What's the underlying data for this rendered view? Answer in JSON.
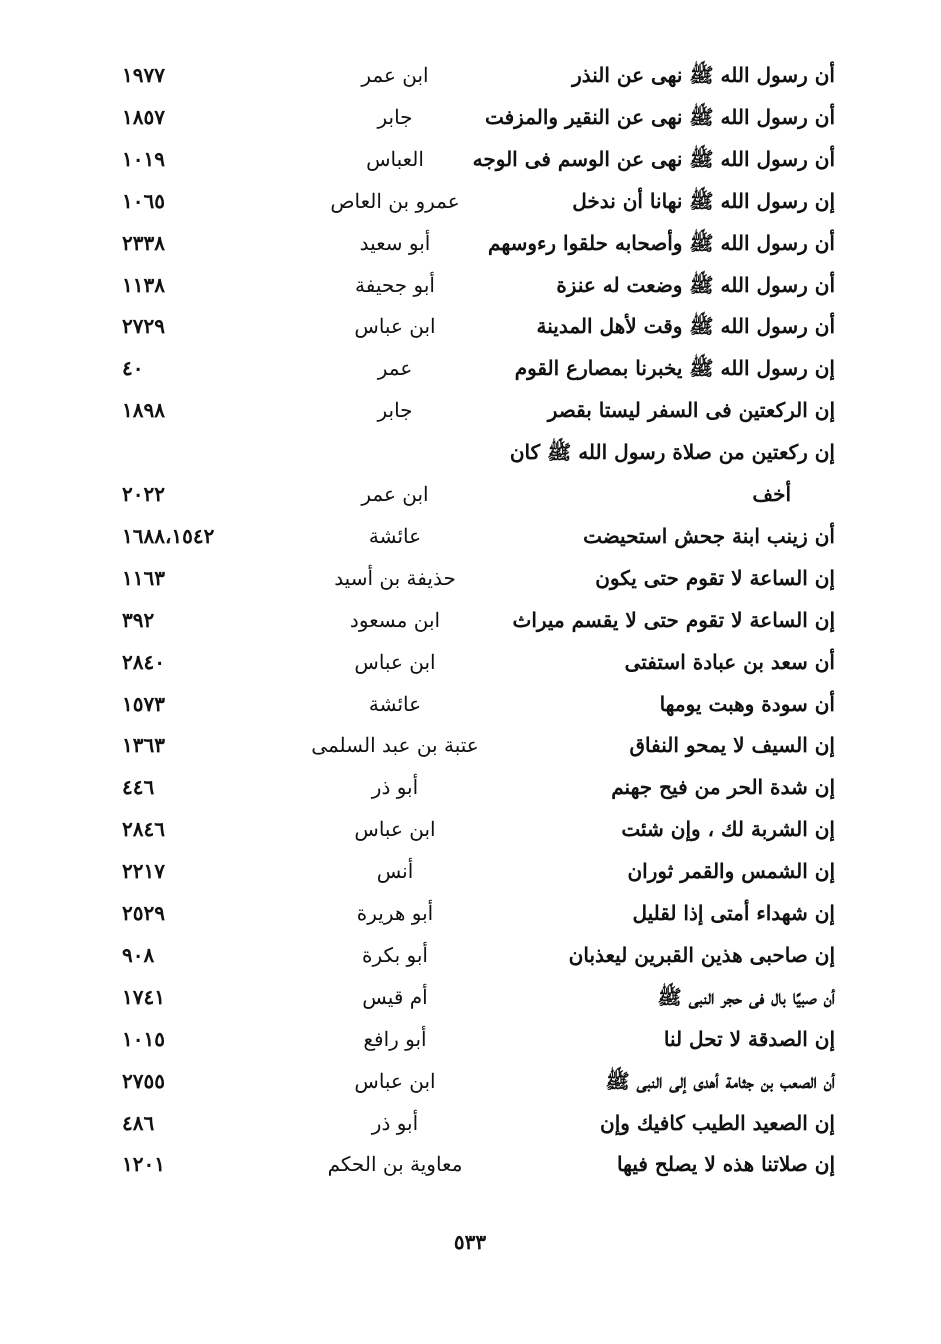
{
  "entries": [
    {
      "hadith": [
        "أن رسول الله ﷺ نهى عن النذر"
      ],
      "narrator": "ابن عمر",
      "number": "١٩٧٧"
    },
    {
      "hadith": [
        "أن رسول الله ﷺ نهى عن النقير والمزفت"
      ],
      "narrator": "جابر",
      "number": "١٨٥٧"
    },
    {
      "hadith": [
        "أن رسول الله ﷺ نهى عن الوسم فى الوجه"
      ],
      "narrator": "العباس",
      "number": "١٠١٩"
    },
    {
      "hadith": [
        "إن رسول الله ﷺ نهانا أن ندخل"
      ],
      "narrator": "عمرو بن العاص",
      "number": "١٠٦٥"
    },
    {
      "hadith": [
        "أن رسول الله ﷺ وأصحابه حلقوا رءوسهم"
      ],
      "narrator": "أبو سعيد",
      "number": "٢٣٣٨"
    },
    {
      "hadith": [
        "أن رسول الله ﷺ وضعت له عنزة"
      ],
      "narrator": "أبو جحيفة",
      "number": "١١٣٨"
    },
    {
      "hadith": [
        "أن رسول الله ﷺ وقت لأهل المدينة"
      ],
      "narrator": "ابن عباس",
      "number": "٢٧٢٩"
    },
    {
      "hadith": [
        "إن رسول الله ﷺ يخبرنا بمصارع القوم"
      ],
      "narrator": "عمر",
      "number": "٤٠"
    },
    {
      "hadith": [
        "إن الركعتين فى السفر ليستا بقصر"
      ],
      "narrator": "جابر",
      "number": "١٨٩٨"
    },
    {
      "hadith": [
        "إن ركعتين من صلاة رسول الله ﷺ كان",
        "أخف"
      ],
      "narrator": "ابن عمر",
      "number": "٢٠٢٢"
    },
    {
      "hadith": [
        "أن زينب ابنة جحش استحيضت"
      ],
      "narrator": "عائشة",
      "number": "١٦٨٨،١٥٤٢"
    },
    {
      "hadith": [
        "إن الساعة لا تقوم حتى يكون"
      ],
      "narrator": "حذيفة بن أسيد",
      "number": "١١٦٣"
    },
    {
      "hadith": [
        "إن الساعة لا تقوم حتى لا يقسم ميراث"
      ],
      "narrator": "ابن مسعود",
      "number": "٣٩٢"
    },
    {
      "hadith": [
        "أن سعد بن عبادة استفتى"
      ],
      "narrator": "ابن عباس",
      "number": "٢٨٤٠"
    },
    {
      "hadith": [
        "أن سودة وهبت يومها"
      ],
      "narrator": "عائشة",
      "number": "١٥٧٣"
    },
    {
      "hadith": [
        "إن السيف لا يمحو النفاق"
      ],
      "narrator": "عتبة بن عبد السلمى",
      "number": "١٣٦٣"
    },
    {
      "hadith": [
        "إن شدة الحر من فيح جهنم"
      ],
      "narrator": "أبو ذر",
      "number": "٤٤٦"
    },
    {
      "hadith": [
        "إن الشربة لك ، وإن شئت"
      ],
      "narrator": "ابن عباس",
      "number": "٢٨٤٦"
    },
    {
      "hadith": [
        "إن الشمس والقمر ثوران"
      ],
      "narrator": "أنس",
      "number": "٢٢١٧"
    },
    {
      "hadith": [
        "إن شهداء أمتى إذا لقليل"
      ],
      "narrator": "أبو هريرة",
      "number": "٢٥٢٩"
    },
    {
      "hadith": [
        "إن صاحبى هذين القبرين ليعذبان"
      ],
      "narrator": "أبو بكرة",
      "number": "٩٠٨"
    },
    {
      "hadith": [
        "أن صبيًا بال فى حجر النبى ﷺ"
      ],
      "narrator": "أم قيس",
      "number": "١٧٤١"
    },
    {
      "hadith": [
        "إن الصدقة لا تحل لنا"
      ],
      "narrator": "أبو رافع",
      "number": "١٠١٥"
    },
    {
      "hadith": [
        "أن الصعب بن جثامة أهدى إلى النبى ﷺ"
      ],
      "narrator": "ابن عباس",
      "number": "٢٧٥٥"
    },
    {
      "hadith": [
        "إن الصعيد الطيب كافيك وإن"
      ],
      "narrator": "أبو ذر",
      "number": "٤٨٦"
    },
    {
      "hadith": [
        "إن صلاتنا هذه لا يصلح فيها"
      ],
      "narrator": "معاوية بن الحكم",
      "number": "١٢٠١"
    }
  ],
  "page_number": "٥٣٣"
}
